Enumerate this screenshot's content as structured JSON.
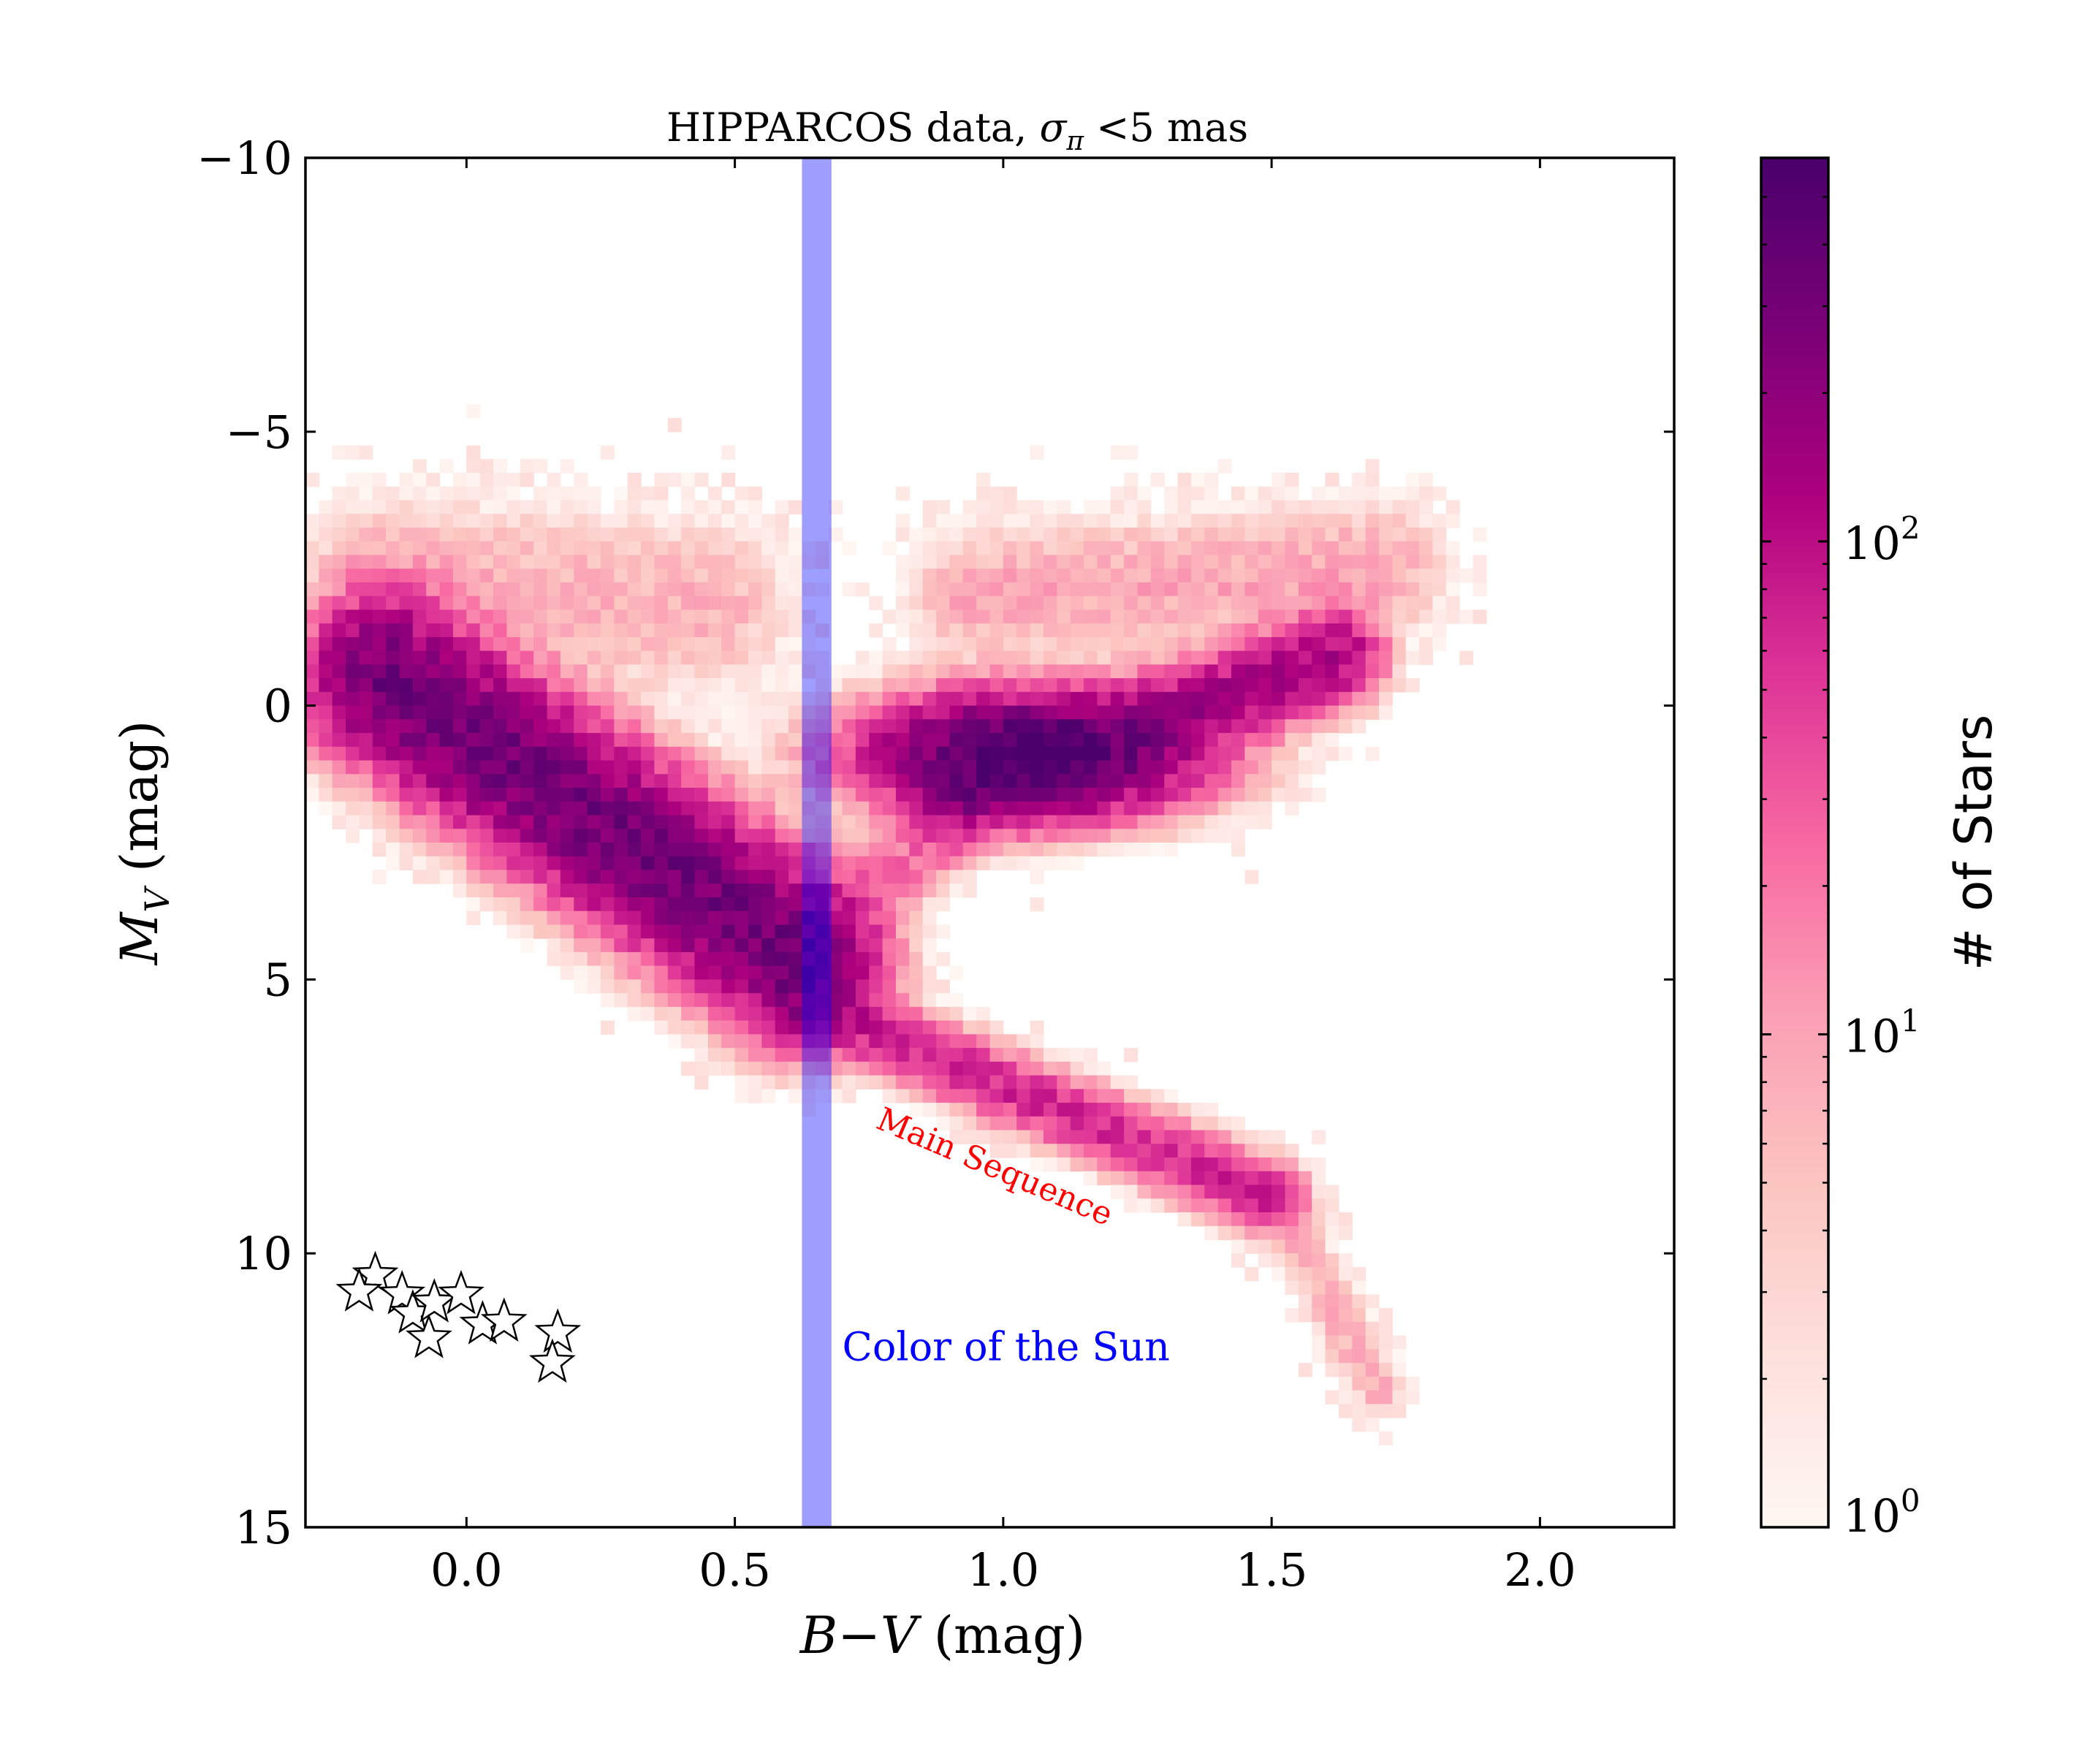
{
  "chart_data": {
    "type": "heatmap",
    "title": "HIPPARCOS data, σπ <5 mas",
    "title_main": "HIPPARCOS data, ",
    "title_sigma": "σ",
    "title_sub": "π",
    "title_tail": " <5 mas",
    "xlabel_B": "B",
    "xlabel_minus": "−",
    "xlabel_V": "V",
    "xlabel_unit": " (mag)",
    "ylabel_M": "M",
    "ylabel_sub": "V",
    "ylabel_unit": " (mag)",
    "xlim": [
      -0.3,
      2.25
    ],
    "ylim": [
      15,
      -10
    ],
    "y_inverted": true,
    "x_ticks": [
      0.0,
      0.5,
      1.0,
      1.5,
      2.0
    ],
    "x_tick_labels": [
      "0.0",
      "0.5",
      "1.0",
      "1.5",
      "2.0"
    ],
    "y_ticks": [
      -10,
      -5,
      0,
      5,
      10,
      15
    ],
    "y_tick_labels": [
      "−10",
      "−5",
      "0",
      "5",
      "10",
      "15"
    ],
    "colorbar": {
      "label": "# of Stars",
      "scale": "log",
      "range": [
        1,
        600
      ],
      "ticks": [
        1,
        10,
        100
      ],
      "tick_labels": [
        {
          "base": "10",
          "exp": "0"
        },
        {
          "base": "10",
          "exp": "1"
        },
        {
          "base": "10",
          "exp": "2"
        }
      ],
      "colors": [
        "#fff7f3",
        "#fde0dd",
        "#fcc5c0",
        "#fa9fb5",
        "#f768a1",
        "#dd3497",
        "#ae017e",
        "#7a0177",
        "#49006a"
      ]
    },
    "density_components": [
      {
        "name": "upper main sequence",
        "bv": [
          -0.15,
          0.62
        ],
        "mv": [
          -0.5,
          4.6
        ],
        "sigma_perp": 0.75,
        "sigma_along": 0.3,
        "peak": 330
      },
      {
        "name": "lower main sequence",
        "bv": [
          0.62,
          1.5
        ],
        "mv": [
          5.4,
          9.0
        ],
        "sigma_perp": 0.35,
        "sigma_along": 0.3,
        "peak": 70
      },
      {
        "name": "late dwarfs",
        "bv": [
          1.5,
          1.7
        ],
        "mv": [
          9.0,
          12.5
        ],
        "sigma_perp": 0.32,
        "sigma_along": 0.3,
        "peak": 8
      },
      {
        "name": "subgiant branch",
        "bv": [
          0.62,
          0.95
        ],
        "mv": [
          4.5,
          1.8
        ],
        "sigma_perp": 0.4,
        "sigma_along": 0.3,
        "peak": 25
      },
      {
        "name": "red clump",
        "bv": [
          1.05,
          1.05
        ],
        "mv": [
          0.9,
          0.9
        ],
        "sigma_x": 0.15,
        "sigma_y": 0.55,
        "peak": 560
      },
      {
        "name": "red giant branch",
        "bv": [
          0.92,
          1.62
        ],
        "mv": [
          1.6,
          -0.9
        ],
        "sigma_perp": 0.45,
        "sigma_along": 0.3,
        "peak": 140
      },
      {
        "name": "bright giants",
        "bv": [
          0.95,
          1.7
        ],
        "mv": [
          -2.0,
          -2.5
        ],
        "sigma_perp": 0.7,
        "sigma_along": 0.3,
        "peak": 10
      },
      {
        "name": "blue bright halo",
        "bv": [
          -0.15,
          0.45
        ],
        "mv": [
          -2.3,
          -1.8
        ],
        "sigma_perp": 0.9,
        "sigma_along": 0.3,
        "peak": 8
      }
    ],
    "sun_color_band": {
      "x": 0.65,
      "x_range": [
        0.625,
        0.68
      ],
      "color": "#0000ff",
      "opacity": 0.38
    },
    "white_dwarfs": [
      {
        "bv": -0.17,
        "mv": 10.4
      },
      {
        "bv": -0.2,
        "mv": 10.7
      },
      {
        "bv": -0.12,
        "mv": 10.75
      },
      {
        "bv": -0.1,
        "mv": 11.1
      },
      {
        "bv": -0.06,
        "mv": 10.9
      },
      {
        "bv": -0.01,
        "mv": 10.75
      },
      {
        "bv": -0.07,
        "mv": 11.55
      },
      {
        "bv": 0.03,
        "mv": 11.3
      },
      {
        "bv": 0.07,
        "mv": 11.25
      },
      {
        "bv": 0.17,
        "mv": 11.45
      },
      {
        "bv": 0.16,
        "mv": 12.0
      }
    ],
    "annotations": [
      {
        "text": "Main Sequence",
        "bv": 0.76,
        "mv": 7.7,
        "angle": 23,
        "color": "#ff0000"
      },
      {
        "text": "Color of the Sun",
        "bv": 0.7,
        "mv": 11.95,
        "angle": 0,
        "color": "#0000ff"
      }
    ]
  }
}
